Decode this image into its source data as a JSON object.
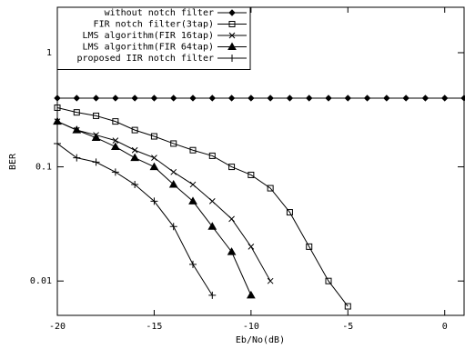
{
  "chart_data": {
    "type": "line",
    "log_y": true,
    "x_label": "Eb/No(dB)",
    "y_label": "BER",
    "xlim": [
      -20,
      1
    ],
    "xticks": [
      -20,
      -15,
      -10,
      -5,
      0
    ],
    "ylim": [
      0.005,
      2.5
    ],
    "yticks": [
      0.01,
      0.1,
      1
    ],
    "legend": "top-left",
    "series": [
      {
        "name": "without notch filter",
        "color": "#000000",
        "marker": "diamond",
        "x": [
          -20,
          -19,
          -18,
          -17,
          -16,
          -15,
          -14,
          -13,
          -12,
          -11,
          -10,
          -9,
          -8,
          -7,
          -6,
          -5,
          -4,
          -3,
          -2,
          -1,
          0,
          1
        ],
        "values": [
          0.4,
          0.4,
          0.4,
          0.4,
          0.4,
          0.4,
          0.4,
          0.4,
          0.4,
          0.4,
          0.4,
          0.4,
          0.4,
          0.4,
          0.4,
          0.4,
          0.4,
          0.4,
          0.4,
          0.4,
          0.4,
          0.4
        ]
      },
      {
        "name": "FIR notch filter(3tap)",
        "color": "#000000",
        "marker": "square",
        "x": [
          -20,
          -19,
          -18,
          -17,
          -16,
          -15,
          -14,
          -13,
          -12,
          -11,
          -10,
          -9,
          -8,
          -7,
          -6,
          -5
        ],
        "values": [
          0.33,
          0.3,
          0.28,
          0.25,
          0.21,
          0.185,
          0.16,
          0.14,
          0.125,
          0.1,
          0.085,
          0.065,
          0.04,
          0.02,
          0.01,
          0.006
        ]
      },
      {
        "name": "LMS algorithm(FIR 16tap)",
        "color": "#000000",
        "marker": "cross",
        "x": [
          -20,
          -19,
          -18,
          -17,
          -16,
          -15,
          -14,
          -13,
          -12,
          -11,
          -10,
          -9
        ],
        "values": [
          0.25,
          0.21,
          0.19,
          0.17,
          0.14,
          0.12,
          0.09,
          0.07,
          0.05,
          0.035,
          0.02,
          0.01
        ]
      },
      {
        "name": "LMS algorithm(FIR 64tap)",
        "color": "#000000",
        "marker": "triangle",
        "x": [
          -20,
          -19,
          -18,
          -17,
          -16,
          -15,
          -14,
          -13,
          -12,
          -11,
          -10
        ],
        "values": [
          0.25,
          0.21,
          0.18,
          0.15,
          0.12,
          0.1,
          0.07,
          0.05,
          0.03,
          0.018,
          0.0075
        ]
      },
      {
        "name": "proposed IIR notch filter",
        "color": "#000000",
        "marker": "plus",
        "x": [
          -20,
          -19,
          -18,
          -17,
          -16,
          -15,
          -14,
          -13,
          -12
        ],
        "values": [
          0.16,
          0.12,
          0.11,
          0.09,
          0.07,
          0.05,
          0.03,
          0.014,
          0.0075
        ]
      }
    ]
  }
}
